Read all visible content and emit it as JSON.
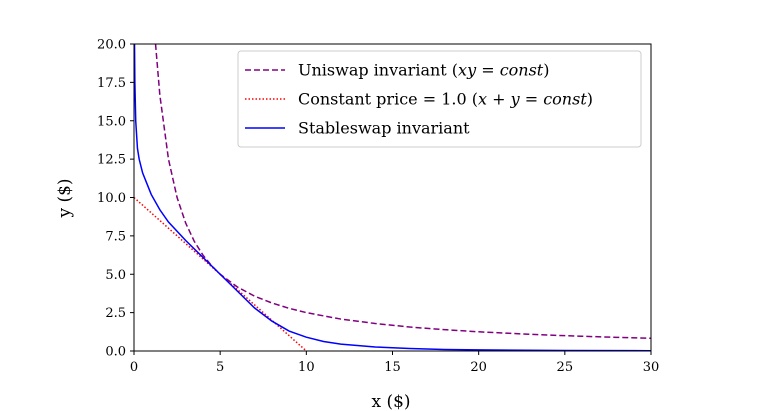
{
  "chart_data": {
    "type": "line",
    "xlabel": "x ($)",
    "ylabel": "y ($)",
    "xlim": [
      0,
      30
    ],
    "ylim": [
      0,
      20
    ],
    "xticks": [
      "0",
      "5",
      "10",
      "15",
      "20",
      "25",
      "30"
    ],
    "yticks": [
      "0.0",
      "2.5",
      "5.0",
      "7.5",
      "10.0",
      "12.5",
      "15.0",
      "17.5",
      "20.0"
    ],
    "grid": false,
    "legend_position": "top-right",
    "series": [
      {
        "name": "Uniswap invariant (xy = const)",
        "legend_parts": [
          {
            "text": "Uniswap invariant (",
            "math": false
          },
          {
            "text": "xy",
            "math": true
          },
          {
            "text": " = ",
            "math": false
          },
          {
            "text": "const",
            "math": true
          },
          {
            "text": ")",
            "math": false
          }
        ],
        "style": "dashed",
        "color": "#800080",
        "x": [
          1.25,
          1.5,
          2,
          2.5,
          3,
          3.5,
          4,
          4.5,
          5,
          6,
          7,
          8,
          9,
          10,
          12,
          14,
          16,
          18,
          20,
          22,
          24,
          26,
          28,
          30
        ],
        "y": [
          20,
          16.67,
          12.5,
          10,
          8.33,
          7.14,
          6.25,
          5.56,
          5,
          4.17,
          3.57,
          3.13,
          2.78,
          2.5,
          2.08,
          1.79,
          1.56,
          1.39,
          1.25,
          1.14,
          1.04,
          0.96,
          0.89,
          0.83
        ]
      },
      {
        "name": "Constant price = 1.0 (x + y = const)",
        "legend_parts": [
          {
            "text": "Constant price = 1.0 (",
            "math": false
          },
          {
            "text": "x",
            "math": true
          },
          {
            "text": " + ",
            "math": false
          },
          {
            "text": "y",
            "math": true
          },
          {
            "text": " = ",
            "math": false
          },
          {
            "text": "const",
            "math": true
          },
          {
            "text": ")",
            "math": false
          }
        ],
        "style": "dotted",
        "color": "#ff0000",
        "x": [
          0,
          10
        ],
        "y": [
          10,
          0
        ]
      },
      {
        "name": "Stableswap invariant",
        "legend_parts": [
          {
            "text": "Stableswap invariant",
            "math": false
          }
        ],
        "style": "solid",
        "color": "#0000ff",
        "x": [
          0.03,
          0.05,
          0.1,
          0.2,
          0.3,
          0.5,
          0.75,
          1,
          1.5,
          2,
          3,
          4,
          5,
          6,
          7,
          8,
          9,
          10,
          11,
          12,
          14,
          16,
          18,
          20,
          25,
          30
        ],
        "y": [
          20,
          17.5,
          15,
          13.2,
          12.5,
          11.6,
          10.9,
          10.2,
          9.2,
          8.4,
          7.2,
          6.1,
          5,
          3.9,
          2.8,
          1.95,
          1.3,
          0.9,
          0.62,
          0.45,
          0.26,
          0.16,
          0.1,
          0.07,
          0.03,
          0.02
        ]
      }
    ]
  }
}
